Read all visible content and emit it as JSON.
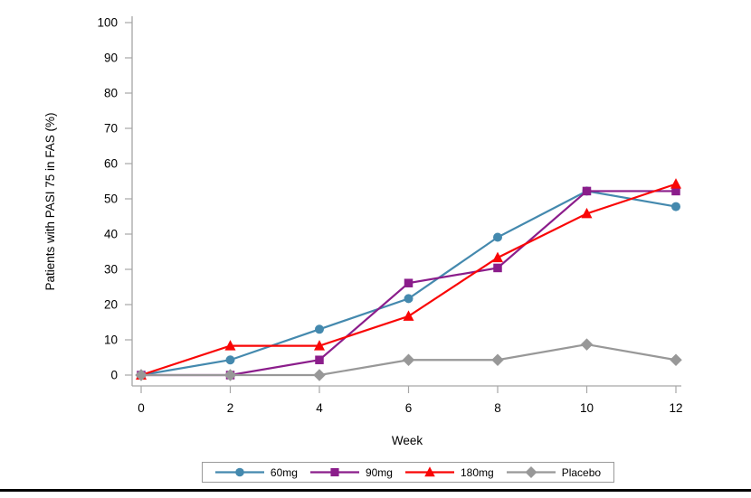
{
  "chart_data": {
    "type": "line",
    "title": "",
    "xlabel": "Week",
    "ylabel": "Patients with PASI 75 in FAS (%)",
    "x": [
      0,
      2,
      4,
      6,
      8,
      10,
      12
    ],
    "x_ticks": [
      0,
      2,
      4,
      6,
      8,
      10,
      12
    ],
    "y_ticks": [
      0,
      10,
      20,
      30,
      40,
      50,
      60,
      70,
      80,
      90,
      100
    ],
    "xlim": [
      0,
      12
    ],
    "ylim": [
      0,
      100
    ],
    "grid": false,
    "legend_position": "bottom-center",
    "axis_color": "#a6a6a6",
    "text_color": "#000000",
    "bottom_rule_color": "#000000",
    "series": [
      {
        "name": "60mg",
        "marker": "circle",
        "color": "#4489ae",
        "values": [
          0,
          4.3,
          13.0,
          21.7,
          39.1,
          52.2,
          47.8
        ]
      },
      {
        "name": "90mg",
        "marker": "square",
        "color": "#8b1d8b",
        "values": [
          0,
          0.0,
          4.3,
          26.1,
          30.4,
          52.2,
          52.2
        ]
      },
      {
        "name": "180mg",
        "marker": "triangle",
        "color": "#f90606",
        "values": [
          0,
          8.3,
          8.3,
          16.7,
          33.3,
          45.8,
          54.2
        ]
      },
      {
        "name": "Placebo",
        "marker": "diamond",
        "color": "#989898",
        "values": [
          0,
          0.0,
          0.0,
          4.3,
          4.3,
          8.7,
          4.3
        ]
      }
    ]
  }
}
